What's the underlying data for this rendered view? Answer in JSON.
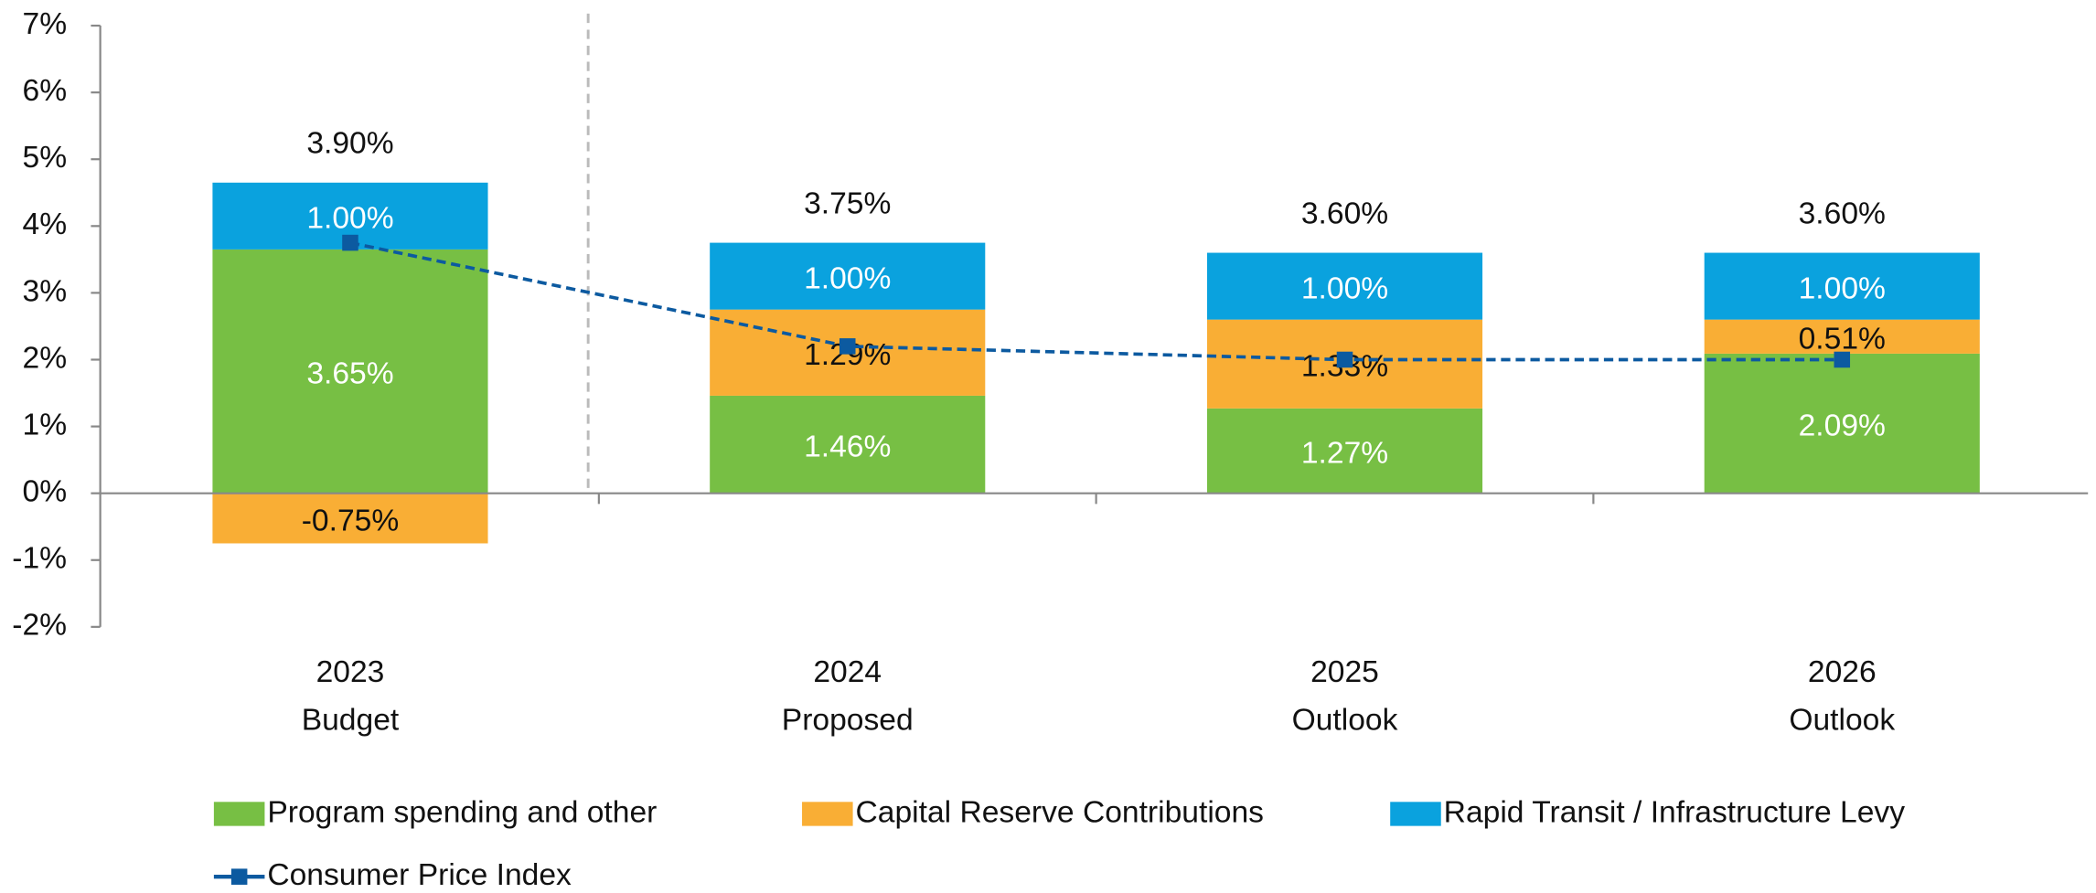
{
  "chart_data": {
    "type": "stacked_bar_line",
    "categories": [
      [
        "2023",
        "Budget"
      ],
      [
        "2024",
        "Proposed"
      ],
      [
        "2025",
        "Outlook"
      ],
      [
        "2026",
        "Outlook"
      ]
    ],
    "series": [
      {
        "name": "Program spending and other",
        "color": "#77bf44",
        "label_color": "#ffffff",
        "values": [
          3.65,
          1.46,
          1.27,
          2.09
        ],
        "value_labels": [
          "3.65%",
          "1.46%",
          "1.27%",
          "2.09%"
        ]
      },
      {
        "name": "Capital Reserve Contributions",
        "color": "#f9ae35",
        "label_color": "#111111",
        "values": [
          -0.75,
          1.29,
          1.33,
          0.51
        ],
        "value_labels": [
          "-0.75%",
          "1.29%",
          "1.33%",
          "0.51%"
        ]
      },
      {
        "name": "Rapid Transit / Infrastructure Levy",
        "color": "#0aa2de",
        "label_color": "#ffffff",
        "values": [
          1.0,
          1.0,
          1.0,
          1.0
        ],
        "value_labels": [
          "1.00%",
          "1.00%",
          "1.00%",
          "1.00%"
        ]
      },
      {
        "name": "Consumer Price Index",
        "color": "#0c5aa0",
        "kind": "line",
        "values": [
          3.75,
          2.2,
          2.0,
          2.0
        ]
      }
    ],
    "totals": {
      "values": [
        3.9,
        3.75,
        3.6,
        3.6
      ],
      "value_labels": [
        "3.90%",
        "3.75%",
        "3.60%",
        "3.60%"
      ]
    },
    "ylim": [
      -2,
      7
    ],
    "yticks": [
      {
        "value": -2,
        "label": "-2%"
      },
      {
        "value": -1,
        "label": "-1%"
      },
      {
        "value": 0,
        "label": "0%"
      },
      {
        "value": 1,
        "label": "1%"
      },
      {
        "value": 2,
        "label": "2%"
      },
      {
        "value": 3,
        "label": "3%"
      },
      {
        "value": 4,
        "label": "4%"
      },
      {
        "value": 5,
        "label": "5%"
      },
      {
        "value": 6,
        "label": "6%"
      },
      {
        "value": 7,
        "label": "7%"
      }
    ],
    "legend": "bottom"
  }
}
